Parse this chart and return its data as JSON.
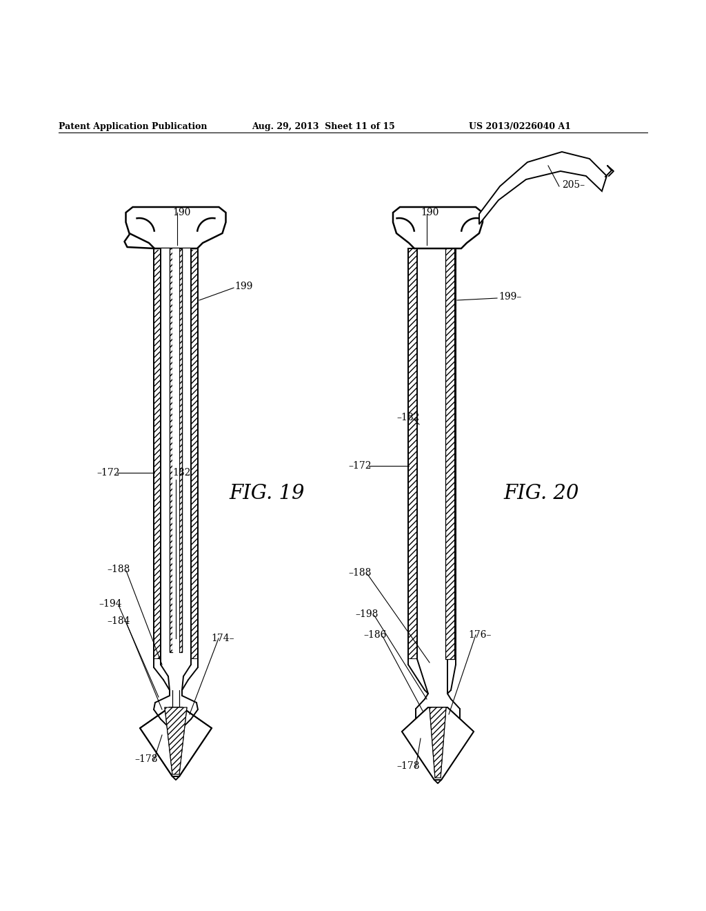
{
  "header_left": "Patent Application Publication",
  "header_mid": "Aug. 29, 2013  Sheet 11 of 15",
  "header_right": "US 2013/0226040 A1",
  "fig19_label": "FIG. 19",
  "fig20_label": "FIG. 20",
  "bg_color": "#ffffff",
  "line_color": "#000000"
}
